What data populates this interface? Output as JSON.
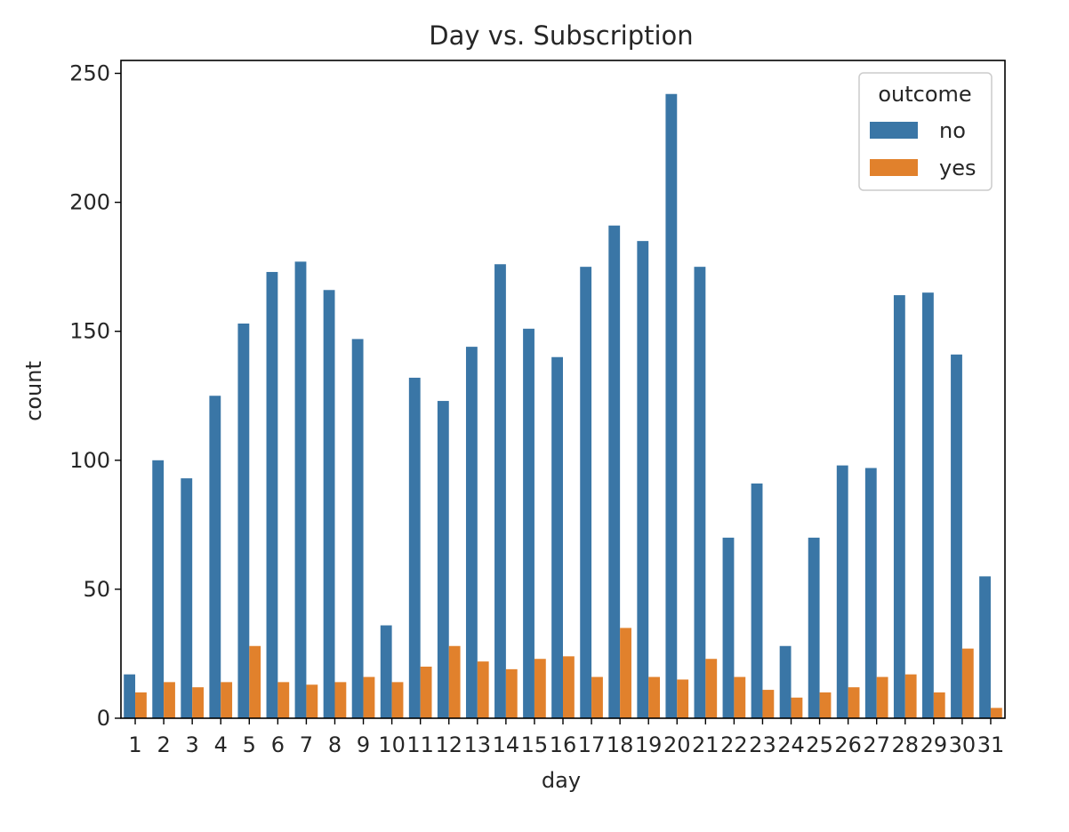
{
  "chart_data": {
    "type": "bar",
    "title": "Day vs. Subscription",
    "xlabel": "day",
    "ylabel": "count",
    "ylim": [
      0,
      255
    ],
    "yticks": [
      0,
      50,
      100,
      150,
      200,
      250
    ],
    "categories": [
      "1",
      "2",
      "3",
      "4",
      "5",
      "6",
      "7",
      "8",
      "9",
      "10",
      "11",
      "12",
      "13",
      "14",
      "15",
      "16",
      "17",
      "18",
      "19",
      "20",
      "21",
      "22",
      "23",
      "24",
      "25",
      "26",
      "27",
      "28",
      "29",
      "30",
      "31"
    ],
    "series": [
      {
        "name": "no",
        "color": "#3a76a6",
        "values": [
          17,
          100,
          93,
          125,
          153,
          173,
          177,
          166,
          147,
          36,
          132,
          123,
          144,
          176,
          151,
          140,
          175,
          191,
          185,
          242,
          175,
          70,
          91,
          28,
          70,
          98,
          97,
          164,
          165,
          141,
          55
        ]
      },
      {
        "name": "yes",
        "color": "#e1812c",
        "values": [
          10,
          14,
          12,
          14,
          28,
          14,
          13,
          14,
          16,
          14,
          20,
          28,
          22,
          19,
          23,
          24,
          16,
          35,
          16,
          15,
          23,
          16,
          11,
          8,
          10,
          12,
          16,
          17,
          10,
          27,
          4
        ]
      }
    ],
    "legend": {
      "title": "outcome",
      "placement": "top-right"
    },
    "grid": false
  }
}
